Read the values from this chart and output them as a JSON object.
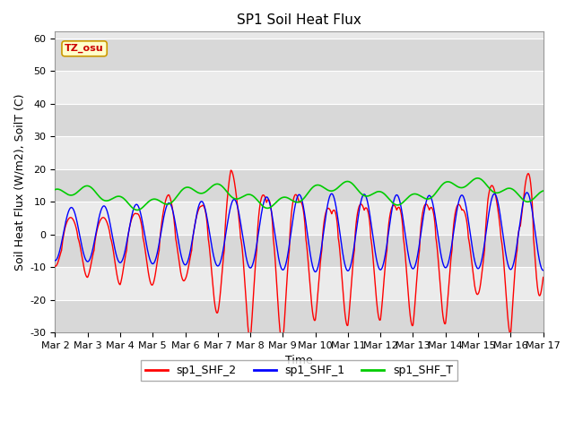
{
  "title": "SP1 Soil Heat Flux",
  "xlabel": "Time",
  "ylabel": "Soil Heat Flux (W/m2), SoilT (C)",
  "ylim": [
    -30,
    62
  ],
  "xlim": [
    0,
    15
  ],
  "xtick_labels": [
    "Mar 2",
    "Mar 3",
    "Mar 4",
    "Mar 5",
    "Mar 6",
    "Mar 7",
    "Mar 8",
    "Mar 9",
    "Mar 10",
    "Mar 11",
    "Mar 12",
    "Mar 13",
    "Mar 14",
    "Mar 15",
    "Mar 16",
    "Mar 17"
  ],
  "xtick_positions": [
    0,
    1,
    2,
    3,
    4,
    5,
    6,
    7,
    8,
    9,
    10,
    11,
    12,
    13,
    14,
    15
  ],
  "ytick_positions": [
    -30,
    -20,
    -10,
    0,
    10,
    20,
    30,
    40,
    50,
    60
  ],
  "line_colors": {
    "shf2": "#ff0000",
    "shf1": "#0000ff",
    "shfT": "#00cc00"
  },
  "line_widths": {
    "shf2": 1.0,
    "shf1": 1.0,
    "shfT": 1.2
  },
  "legend_labels": [
    "sp1_SHF_2",
    "sp1_SHF_1",
    "sp1_SHF_T"
  ],
  "tz_label": "TZ_osu",
  "tz_box_facecolor": "#ffffcc",
  "tz_box_edgecolor": "#cc9900",
  "tz_text_color": "#cc0000",
  "background_color": "#ffffff",
  "plot_bg_color": "#e8e8e8",
  "band_dark": "#d8d8d8",
  "band_light": "#ebebeb",
  "title_fontsize": 11,
  "axis_fontsize": 9,
  "tick_fontsize": 8,
  "legend_fontsize": 9
}
